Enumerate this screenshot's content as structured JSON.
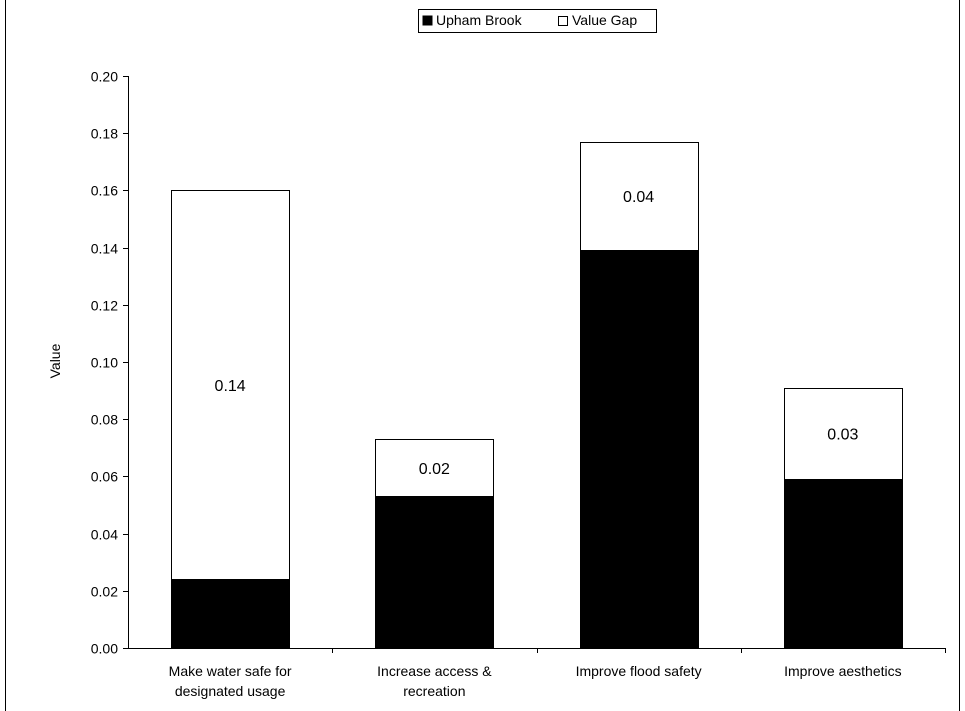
{
  "chart_data": {
    "type": "bar",
    "stacked": true,
    "categories": [
      [
        "Make water safe for",
        "designated usage"
      ],
      [
        "Increase access &",
        "recreation"
      ],
      [
        "Improve flood safety"
      ],
      [
        "Improve aesthetics"
      ]
    ],
    "series": [
      {
        "name": "Upham Brook",
        "values": [
          0.024,
          0.053,
          0.139,
          0.059
        ],
        "color": "#000000"
      },
      {
        "name": "Value Gap",
        "values": [
          0.136,
          0.02,
          0.038,
          0.032
        ],
        "color": "#ffffff"
      }
    ],
    "data_labels": [
      "0.14",
      "0.02",
      "0.04",
      "0.03"
    ],
    "ylabel": "Value",
    "xlabel": "",
    "title": "",
    "ylim": [
      0,
      0.2
    ],
    "yticks": [
      "0.00",
      "0.02",
      "0.04",
      "0.06",
      "0.08",
      "0.10",
      "0.12",
      "0.14",
      "0.16",
      "0.18",
      "0.20"
    ],
    "legend_position": "top-center",
    "grid": false
  }
}
